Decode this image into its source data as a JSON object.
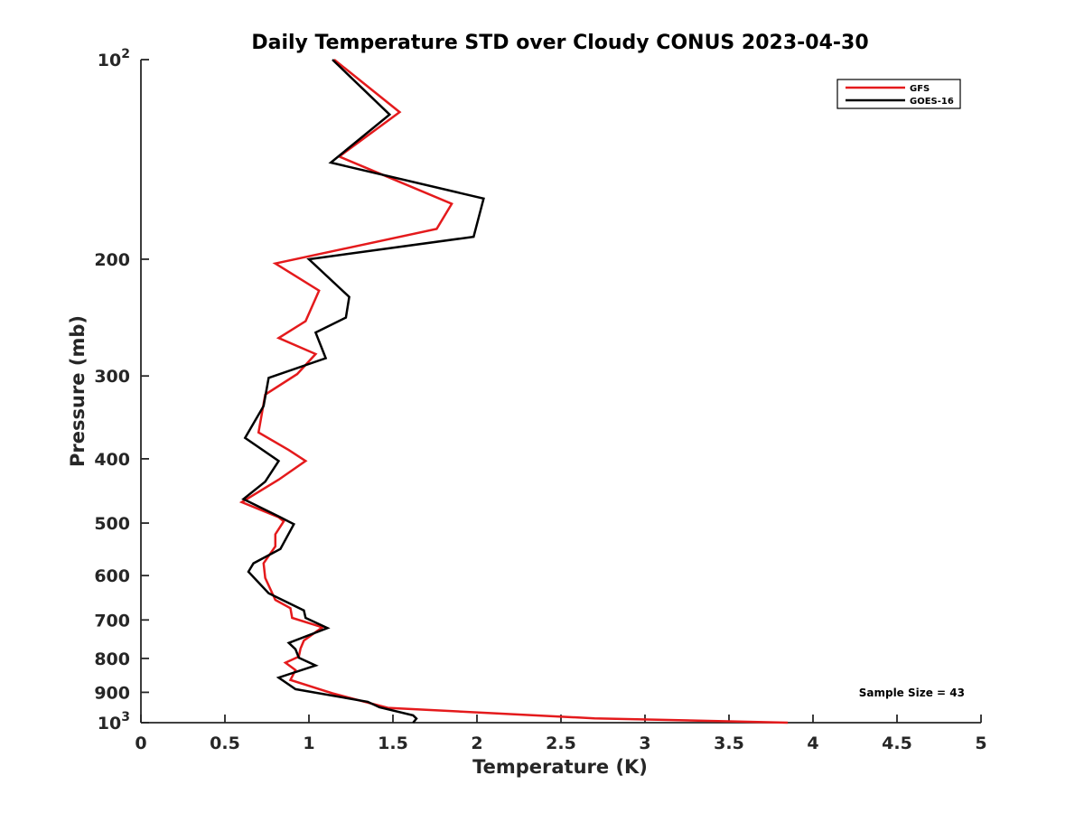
{
  "chart_data": {
    "type": "line",
    "title": "Daily Temperature STD over Cloudy CONUS 2023-04-30",
    "xlabel": "Temperature (K)",
    "ylabel": "Pressure (mb)",
    "xlim": [
      0,
      5
    ],
    "ylim": [
      100,
      1000
    ],
    "y_scale": "log",
    "y_reversed": true,
    "grid": false,
    "legend_position": "top-right",
    "x_ticks": [
      0,
      0.5,
      1,
      1.5,
      2,
      2.5,
      3,
      3.5,
      4,
      4.5,
      5
    ],
    "x_tick_labels": [
      "0",
      "0.5",
      "1",
      "1.5",
      "2",
      "2.5",
      "3",
      "3.5",
      "4",
      "4.5",
      "5"
    ],
    "y_ticks": [
      {
        "value": 100,
        "label": "10",
        "sup": "2"
      },
      {
        "value": 200,
        "label": "200",
        "sup": ""
      },
      {
        "value": 300,
        "label": "300",
        "sup": ""
      },
      {
        "value": 400,
        "label": "400",
        "sup": ""
      },
      {
        "value": 500,
        "label": "500",
        "sup": ""
      },
      {
        "value": 600,
        "label": "600",
        "sup": ""
      },
      {
        "value": 700,
        "label": "700",
        "sup": ""
      },
      {
        "value": 800,
        "label": "800",
        "sup": ""
      },
      {
        "value": 900,
        "label": "900",
        "sup": ""
      },
      {
        "value": 1000,
        "label": "10",
        "sup": "3"
      }
    ],
    "series": [
      {
        "name": "GFS",
        "color": "#e41a1c",
        "points": [
          [
            1.15,
            100
          ],
          [
            1.54,
            120
          ],
          [
            1.18,
            140
          ],
          [
            1.85,
            165
          ],
          [
            1.76,
            180
          ],
          [
            0.8,
            203
          ],
          [
            1.06,
            223
          ],
          [
            0.98,
            248
          ],
          [
            0.82,
            263
          ],
          [
            1.04,
            278
          ],
          [
            0.93,
            298
          ],
          [
            0.74,
            320
          ],
          [
            0.7,
            365
          ],
          [
            0.88,
            388
          ],
          [
            0.98,
            403
          ],
          [
            0.82,
            430
          ],
          [
            0.6,
            465
          ],
          [
            0.82,
            490
          ],
          [
            0.85,
            497
          ],
          [
            0.8,
            520
          ],
          [
            0.8,
            542
          ],
          [
            0.73,
            575
          ],
          [
            0.74,
            605
          ],
          [
            0.8,
            653
          ],
          [
            0.89,
            672
          ],
          [
            0.9,
            695
          ],
          [
            1.08,
            718
          ],
          [
            0.97,
            752
          ],
          [
            0.95,
            773
          ],
          [
            0.94,
            795
          ],
          [
            0.86,
            812
          ],
          [
            0.92,
            833
          ],
          [
            0.89,
            862
          ],
          [
            1.14,
            903
          ],
          [
            1.47,
            950
          ],
          [
            2.7,
            985
          ],
          [
            3.85,
            1000
          ]
        ]
      },
      {
        "name": "GOES-16",
        "color": "#000000",
        "points": [
          [
            1.14,
            100
          ],
          [
            1.48,
            121
          ],
          [
            1.13,
            143
          ],
          [
            2.04,
            162
          ],
          [
            1.98,
            185
          ],
          [
            1.0,
            200
          ],
          [
            1.24,
            228
          ],
          [
            1.22,
            245
          ],
          [
            1.04,
            258
          ],
          [
            1.1,
            282
          ],
          [
            0.76,
            302
          ],
          [
            0.73,
            333
          ],
          [
            0.62,
            372
          ],
          [
            0.82,
            403
          ],
          [
            0.74,
            433
          ],
          [
            0.61,
            460
          ],
          [
            0.83,
            490
          ],
          [
            0.91,
            502
          ],
          [
            0.83,
            547
          ],
          [
            0.67,
            575
          ],
          [
            0.64,
            592
          ],
          [
            0.76,
            638
          ],
          [
            0.97,
            677
          ],
          [
            0.98,
            695
          ],
          [
            1.11,
            720
          ],
          [
            0.88,
            758
          ],
          [
            0.92,
            775
          ],
          [
            0.94,
            798
          ],
          [
            1.04,
            820
          ],
          [
            0.82,
            855
          ],
          [
            0.92,
            890
          ],
          [
            1.35,
            930
          ],
          [
            1.42,
            948
          ],
          [
            1.62,
            975
          ],
          [
            1.64,
            986
          ],
          [
            1.62,
            1000
          ]
        ]
      }
    ],
    "annotations": [
      "Sample Size = 43"
    ]
  }
}
